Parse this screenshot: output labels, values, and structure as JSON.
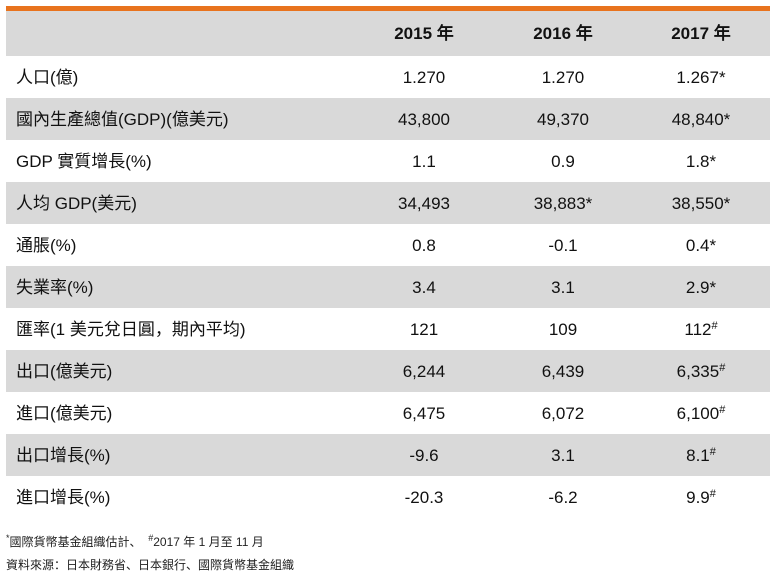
{
  "table": {
    "headers": [
      "",
      "2015 年",
      "2016 年",
      "2017 年"
    ],
    "rows": [
      {
        "label": "人口(億)",
        "values": [
          "1.270",
          "1.270",
          "1.267*"
        ]
      },
      {
        "label": "國內生產總值(GDP)(億美元)",
        "values": [
          "43,800",
          "49,370",
          "48,840*"
        ]
      },
      {
        "label": "GDP 實質增長(%)",
        "values": [
          "1.1",
          "0.9",
          "1.8*"
        ]
      },
      {
        "label": "人均 GDP(美元)",
        "values": [
          "34,493",
          "38,883*",
          "38,550*"
        ]
      },
      {
        "label": "通脹(%)",
        "values": [
          "0.8",
          "-0.1",
          "0.4*"
        ]
      },
      {
        "label": "失業率(%)",
        "values": [
          "3.4",
          "3.1",
          "2.9*"
        ]
      },
      {
        "label": "匯率(1 美元兌日圓，期內平均)",
        "values": [
          "121",
          "109",
          "112#"
        ]
      },
      {
        "label": "出口(億美元)",
        "values": [
          "6,244",
          "6,439",
          "6,335#"
        ]
      },
      {
        "label": "進口(億美元)",
        "values": [
          "6,475",
          "6,072",
          "6,100#"
        ]
      },
      {
        "label": "出口增長(%)",
        "values": [
          "-9.6",
          "3.1",
          "8.1#"
        ]
      },
      {
        "label": "進口增長(%)",
        "values": [
          "-20.3",
          "-6.2",
          "9.9#"
        ]
      }
    ]
  },
  "footnotes": {
    "note1_star": "*",
    "note1_text": "國際貨幣基金組織估計、",
    "note1_hash": "#",
    "note1_text2": "2017 年 1 月至 11 月",
    "source": "資料來源：日本財務省、日本銀行、國際貨幣基金組織"
  },
  "colors": {
    "accent_rule": "#e8731e",
    "row_shade": "#d9d9d9"
  }
}
